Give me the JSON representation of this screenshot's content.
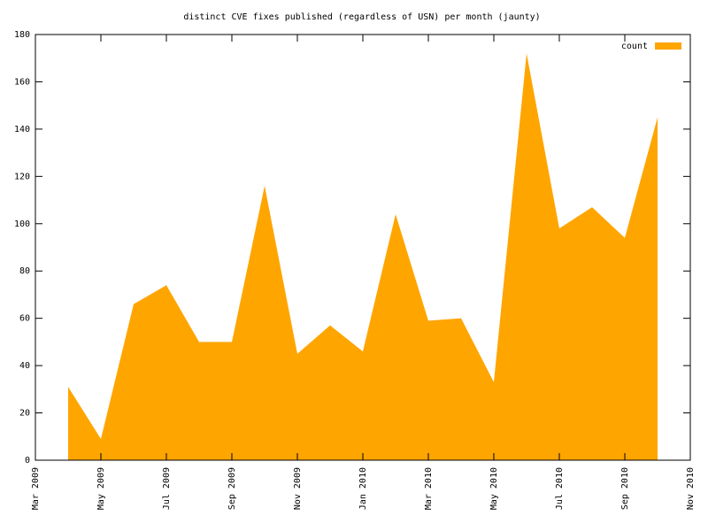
{
  "chart_data": {
    "type": "area",
    "title": "distinct CVE fixes published (regardless of USN) per month (jaunty)",
    "x": [
      "2009-04",
      "2009-05",
      "2009-06",
      "2009-07",
      "2009-08",
      "2009-09",
      "2009-10",
      "2009-11",
      "2009-12",
      "2010-01",
      "2010-02",
      "2010-03",
      "2010-04",
      "2010-05",
      "2010-06",
      "2010-07",
      "2010-08",
      "2010-09",
      "2010-10"
    ],
    "series": [
      {
        "name": "count",
        "color": "#ffa500",
        "values": [
          31,
          9,
          66,
          74,
          50,
          50,
          116,
          45,
          57,
          46,
          104,
          59,
          60,
          33,
          172,
          98,
          107,
          94,
          145
        ]
      }
    ],
    "xlim": [
      "2009-03",
      "2010-11"
    ],
    "xticks": [
      {
        "value": "2009-03",
        "label": "Mar 2009"
      },
      {
        "value": "2009-05",
        "label": "May 2009"
      },
      {
        "value": "2009-07",
        "label": "Jul 2009"
      },
      {
        "value": "2009-09",
        "label": "Sep 2009"
      },
      {
        "value": "2009-11",
        "label": "Nov 2009"
      },
      {
        "value": "2010-01",
        "label": "Jan 2010"
      },
      {
        "value": "2010-03",
        "label": "Mar 2010"
      },
      {
        "value": "2010-05",
        "label": "May 2010"
      },
      {
        "value": "2010-07",
        "label": "Jul 2010"
      },
      {
        "value": "2010-09",
        "label": "Sep 2010"
      },
      {
        "value": "2010-11",
        "label": "Nov 2010"
      }
    ],
    "ylim": [
      0,
      180
    ],
    "yticks": [
      0,
      20,
      40,
      60,
      80,
      100,
      120,
      140,
      160,
      180
    ],
    "legend": "top-right"
  }
}
